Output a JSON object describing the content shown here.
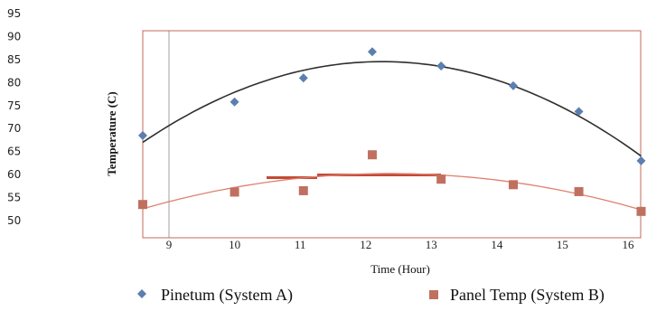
{
  "chart_data": {
    "type": "scatter",
    "title": "",
    "xlabel": "Time (Hour)",
    "ylabel": "Temperature (C)",
    "ylim": [
      50,
      95
    ],
    "yticks": [
      50,
      55,
      60,
      65,
      70,
      75,
      80,
      85,
      90,
      95
    ],
    "xtick_labels": [
      "9",
      "10",
      "11",
      "12",
      "13",
      "14",
      "15",
      "16"
    ],
    "legend_position": "bottom",
    "series": [
      {
        "name": "Pinetum (System A)",
        "marker": "diamond",
        "color": "#5b7fae",
        "trend_color": "#2f2f2f",
        "x": [
          8.6,
          10.0,
          11.05,
          12.1,
          13.15,
          14.25,
          15.25,
          16.2
        ],
        "y": [
          68.5,
          75.8,
          81.0,
          86.7,
          83.6,
          79.3,
          73.7,
          63.0
        ]
      },
      {
        "name": "Panel Temp (System B)",
        "marker": "square",
        "color": "#c0705f",
        "trend_color": "#e08070",
        "x": [
          8.6,
          10.0,
          11.05,
          12.1,
          13.15,
          14.25,
          15.25,
          16.2
        ],
        "y": [
          53.5,
          56.2,
          56.5,
          64.3,
          59.0,
          57.8,
          56.3,
          52.0
        ]
      }
    ]
  }
}
